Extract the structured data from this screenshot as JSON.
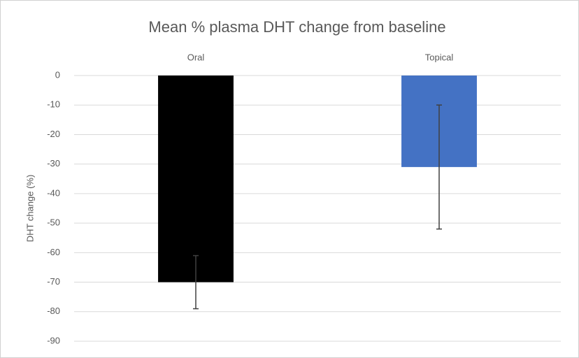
{
  "chart_data": {
    "type": "bar",
    "title": "Mean % plasma DHT change from baseline",
    "y_label": "DHT change (%)",
    "categories": [
      "Oral",
      "Topical"
    ],
    "values": [
      -70,
      -31
    ],
    "errors": [
      9,
      21
    ],
    "colors": [
      "#000000",
      "#4472c4"
    ],
    "ylim": [
      -90,
      0
    ],
    "yticks": [
      0,
      -10,
      -20,
      -30,
      -40,
      -50,
      -60,
      -70,
      -80,
      -90
    ],
    "grid": true
  }
}
